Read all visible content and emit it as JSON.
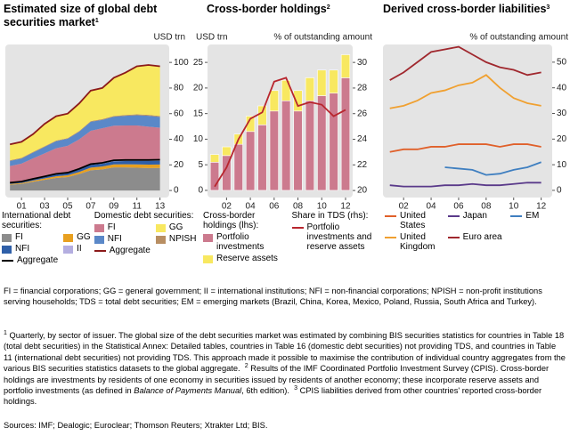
{
  "chart_data": [
    {
      "type": "area",
      "title": "Estimated size of global debt securities market",
      "title_note": "1",
      "ylabel": "USD trn",
      "y_side": "right",
      "x": [
        2000,
        2001,
        2002,
        2003,
        2004,
        2005,
        2006,
        2007,
        2008,
        2009,
        2010,
        2011,
        2012,
        2013
      ],
      "xlim": [
        1999.6,
        2013.8
      ],
      "xticks": [
        {
          "value": 2001,
          "label": "01"
        },
        {
          "value": 2003,
          "label": "03"
        },
        {
          "value": 2005,
          "label": "05"
        },
        {
          "value": 2007,
          "label": "07"
        },
        {
          "value": 2009,
          "label": "09"
        },
        {
          "value": 2011,
          "label": "11"
        },
        {
          "value": 2013,
          "label": "13"
        }
      ],
      "ylim": [
        -5.5,
        114
      ],
      "yticks": [
        0,
        20,
        40,
        60,
        80,
        100
      ],
      "legend_titles": [
        "International debt securities:",
        "Domestic debt securities:"
      ],
      "legend_columns": 2,
      "stack_order": [
        0,
        1,
        2,
        3,
        5,
        7,
        8,
        6
      ],
      "series": [
        {
          "name": "FI",
          "group": 0,
          "color": "#8c8c8c",
          "values": [
            4.5,
            5.2,
            6.8,
            8.3,
            9.8,
            10.5,
            12.8,
            15.8,
            16.5,
            18,
            18,
            17.8,
            17.5,
            17.6
          ]
        },
        {
          "name": "GG",
          "group": 0,
          "color": "#e8a020",
          "values": [
            0.6,
            0.7,
            0.9,
            1.1,
            1.3,
            1.4,
            1.7,
            2.1,
            2.2,
            2.4,
            2.5,
            2.6,
            2.7,
            2.7
          ]
        },
        {
          "name": "NFI",
          "group": 0,
          "color": "#2f5fa8",
          "values": [
            0.7,
            0.8,
            1,
            1.2,
            1.4,
            1.5,
            1.8,
            2.1,
            2.2,
            2.4,
            2.5,
            2.6,
            2.8,
            2.9
          ]
        },
        {
          "name": "II",
          "group": 0,
          "color": "#b4aee0",
          "values": [
            0.3,
            0.3,
            0.4,
            0.4,
            0.5,
            0.5,
            0.6,
            0.6,
            0.7,
            0.8,
            0.8,
            0.8,
            0.8,
            0.8
          ]
        },
        {
          "name": "Aggregate",
          "group": 0,
          "kind": "line",
          "color": "#000000",
          "values": [
            6.1,
            7.0,
            9.1,
            11.0,
            13.0,
            13.9,
            16.9,
            20.6,
            21.6,
            23.6,
            23.8,
            23.8,
            23.8,
            24.0
          ]
        },
        {
          "name": "FI",
          "group": 1,
          "color": "#cc7a8e",
          "values": [
            13,
            14,
            16,
            18,
            20,
            21,
            23,
            26,
            27,
            27,
            27,
            27,
            26,
            25
          ]
        },
        {
          "name": "GG",
          "group": 1,
          "color": "#f8e860",
          "values": [
            12.4,
            12.5,
            13.9,
            17.5,
            19,
            19.1,
            21.6,
            23.8,
            24.3,
            29.8,
            33.1,
            37.5,
            39,
            38.8
          ]
        },
        {
          "name": "NFI",
          "group": 1,
          "color": "#5a88c8",
          "values": [
            4,
            4,
            4.5,
            5,
            5.5,
            5.5,
            6,
            7,
            6.5,
            7,
            7.5,
            8,
            8.5,
            8.5
          ]
        },
        {
          "name": "NPISH",
          "group": 1,
          "color": "#b88e62",
          "values": [
            0.5,
            0.5,
            0.5,
            0.5,
            0.5,
            0.5,
            0.5,
            0.6,
            0.6,
            0.6,
            0.6,
            0.7,
            0.7,
            0.7
          ]
        },
        {
          "name": "Aggregate",
          "group": 1,
          "kind": "line",
          "stack_on": 3,
          "color": "#8b1a1a",
          "values": [
            29.9,
            31,
            34.9,
            41,
            45,
            46.1,
            51.1,
            57.4,
            58.4,
            64.4,
            68.2,
            73.2,
            74.2,
            73
          ]
        }
      ]
    },
    {
      "type": "bar",
      "title": "Cross-border holdings",
      "title_note": "2",
      "ylabel": "USD trn",
      "y2label": "% of outstanding amount",
      "y_side": "left",
      "x": [
        2001,
        2002,
        2003,
        2004,
        2005,
        2006,
        2007,
        2008,
        2009,
        2010,
        2011,
        2012
      ],
      "xlim": [
        2000.4,
        2012.6
      ],
      "xticks": [
        {
          "value": 2002,
          "label": "02"
        },
        {
          "value": 2004,
          "label": "04"
        },
        {
          "value": 2006,
          "label": "06"
        },
        {
          "value": 2008,
          "label": "08"
        },
        {
          "value": 2010,
          "label": "10"
        },
        {
          "value": 2012,
          "label": "12"
        }
      ],
      "ylim": [
        -1.4,
        28.5
      ],
      "yticks": [
        0,
        5,
        10,
        15,
        20,
        25
      ],
      "y2lim": [
        19.45,
        31.4
      ],
      "y2ticks": [
        20,
        22,
        24,
        26,
        28,
        30
      ],
      "legend_titles": [
        "Cross-border holdings (lhs):",
        "Share in TDS (rhs):"
      ],
      "legend_columns": 1,
      "series": [
        {
          "name": "Portfolio investments",
          "group": 0,
          "color": "#cc7a8e",
          "values": [
            5.5,
            6.8,
            9,
            11.5,
            12.8,
            15.5,
            17.5,
            15.5,
            17.5,
            18.5,
            19,
            22
          ]
        },
        {
          "name": "Reserve assets",
          "group": 0,
          "color": "#f8e860",
          "values": [
            1.5,
            1.7,
            2,
            3,
            3.7,
            4,
            4,
            4,
            4.5,
            5,
            4.5,
            4.5
          ]
        },
        {
          "name": "Portfolio investments and reserve assets",
          "group": 1,
          "kind": "line",
          "axis": "y2",
          "color": "#b8262e",
          "values": [
            20.3,
            21.8,
            24,
            25.6,
            26.1,
            28.5,
            28.8,
            26.6,
            26.9,
            26.7,
            25.8,
            26.3
          ]
        }
      ]
    },
    {
      "type": "line",
      "title": "Derived cross-border liabilities",
      "title_note": "3",
      "ylabel": "% of outstanding amount",
      "y_side": "right",
      "x": [
        2001,
        2002,
        2003,
        2004,
        2005,
        2006,
        2007,
        2008,
        2009,
        2010,
        2011,
        2012
      ],
      "xlim": [
        2000.5,
        2012.8
      ],
      "xticks": [
        {
          "value": 2002,
          "label": "02"
        },
        {
          "value": 2004,
          "label": "04"
        },
        {
          "value": 2006,
          "label": "06"
        },
        {
          "value": 2008,
          "label": "08"
        },
        {
          "value": 2010,
          "label": "10"
        },
        {
          "value": 2012,
          "label": "12"
        }
      ],
      "ylim": [
        -2.8,
        56.9
      ],
      "yticks": [
        0,
        10,
        20,
        30,
        40,
        50
      ],
      "legend_columns": 3,
      "series": [
        {
          "name": "United States",
          "color": "#e0602a",
          "values": [
            15,
            16,
            16,
            17,
            17,
            18,
            18,
            18,
            17,
            18,
            18,
            17
          ]
        },
        {
          "name": "Japan",
          "color": "#5a3a8a",
          "values": [
            2,
            1.5,
            1.5,
            1.5,
            2,
            2,
            2.5,
            2,
            2,
            2.5,
            3,
            3
          ]
        },
        {
          "name": "EM",
          "color": "#3f7fc0",
          "values": [
            null,
            null,
            null,
            null,
            9,
            8.5,
            8,
            6,
            6.5,
            8,
            9,
            11
          ]
        },
        {
          "name": "United Kingdom",
          "color": "#f0a030",
          "values": [
            32,
            33,
            35,
            38,
            39,
            41,
            42,
            45,
            40,
            36,
            34,
            33
          ]
        },
        {
          "name": "Euro area",
          "color": "#a0282e",
          "values": [
            43,
            46,
            50,
            54,
            55,
            56,
            53,
            50,
            48,
            47,
            45,
            46
          ]
        }
      ]
    }
  ],
  "notes": {
    "abbreviations": "FI = financial corporations; GG = general government; II = international institutions; NFI = non-financial corporations; NPISH = non-profit institutions serving households; TDS = total debt securities; EM = emerging markets (Brazil, China, Korea, Mexico, Poland, Russia, South Africa and Turkey).",
    "footnotes": [
      {
        "marker": "1",
        "text": "Quarterly, by sector of issuer. The global size of the debt securities market was estimated by combining BIS securities statistics for countries in Table 18 (total debt securities) in the Statistical Annex: Detailed tables, countries in Table 16 (domestic debt securities) not providing TDS, and countries in Table 11 (international debt securities) not providing TDS. This approach made it possible to maximise the contribution of individual country aggregates from the various BIS securities statistics datasets to the global aggregate."
      },
      {
        "marker": "2",
        "text": "Results of the IMF Coordinated Portfolio Investment Survey (CPIS). Cross-border holdings are investments by residents of one economy in securities issued by residents of another economy; these incorporate reserve assets and portfolio investments (as defined in ",
        "italic": "Balance of Payments Manual",
        "text_after": ", 6th edition)."
      },
      {
        "marker": "3",
        "text": "CPIS liabilities derived from other countries' reported cross-border holdings."
      }
    ],
    "sources": "Sources: IMF; Dealogic; Euroclear; Thomson Reuters; Xtrakter Ltd; BIS."
  }
}
